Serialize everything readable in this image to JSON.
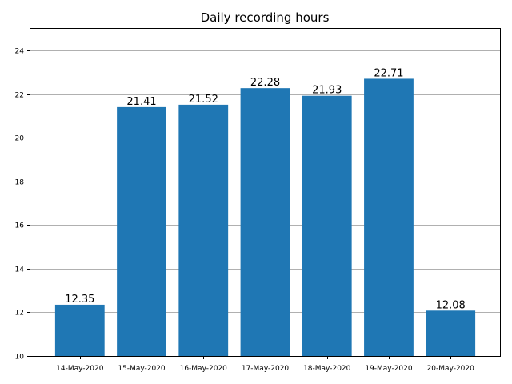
{
  "chart_data": {
    "type": "bar",
    "title": "Daily recording hours",
    "xlabel": "",
    "ylabel": "",
    "categories": [
      "14-May-2020",
      "15-May-2020",
      "16-May-2020",
      "17-May-2020",
      "18-May-2020",
      "19-May-2020",
      "20-May-2020"
    ],
    "values": [
      12.35,
      21.41,
      21.52,
      22.28,
      21.93,
      22.71,
      12.08
    ],
    "data_labels": [
      "12.35",
      "21.41",
      "21.52",
      "22.28",
      "21.93",
      "22.71",
      "12.08"
    ],
    "ylim": [
      10,
      25
    ],
    "yticks": [
      10,
      12,
      14,
      16,
      18,
      20,
      22,
      24
    ],
    "ytick_labels": [
      "10",
      "12",
      "14",
      "16",
      "18",
      "20",
      "22",
      "24"
    ],
    "grid": "y",
    "bar_color": "#1f77b4",
    "grid_color": "#b0b0b0"
  }
}
